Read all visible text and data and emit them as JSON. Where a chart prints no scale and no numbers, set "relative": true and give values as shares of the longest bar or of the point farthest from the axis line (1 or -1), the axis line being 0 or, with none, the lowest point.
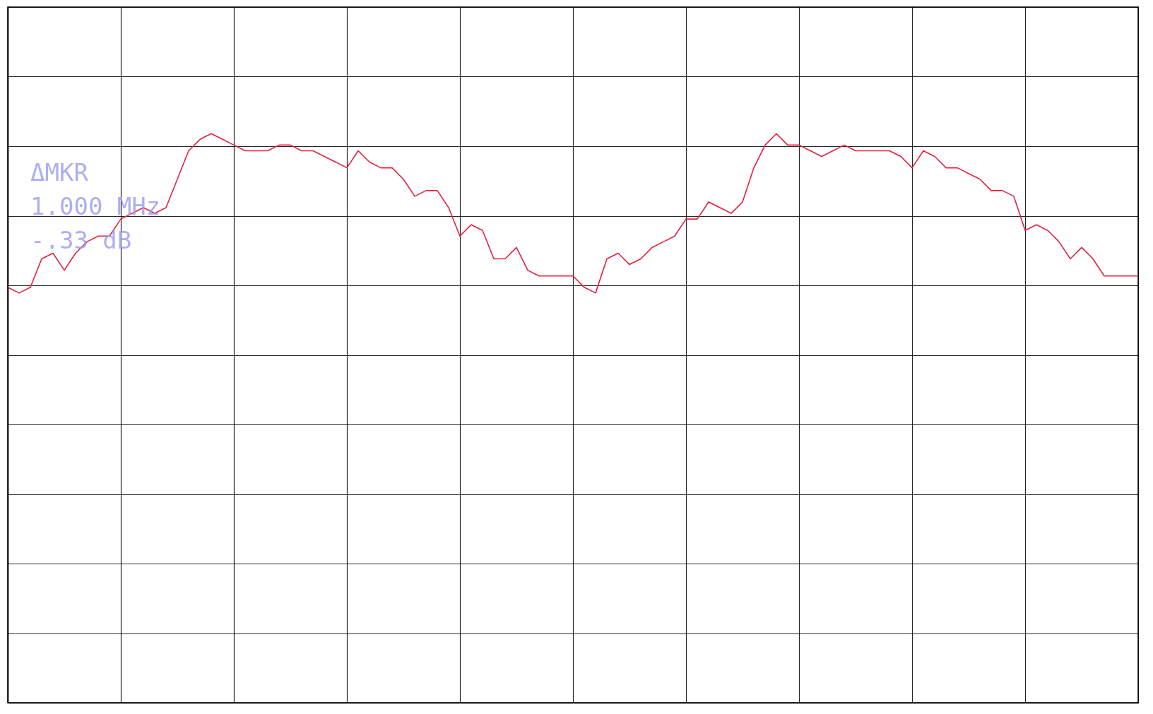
{
  "chart_data": {
    "type": "line",
    "relative": true,
    "grid": true,
    "categories": [
      null,
      null,
      null,
      null,
      null,
      null,
      null,
      null,
      null,
      null,
      null,
      null,
      null,
      null,
      null,
      null,
      null,
      null,
      null,
      null,
      null,
      null,
      null,
      null,
      null,
      null,
      null,
      null,
      null,
      null,
      null,
      null,
      null,
      null,
      null,
      null,
      null,
      null,
      null,
      null,
      null,
      null,
      null,
      null,
      null,
      null,
      null,
      null,
      null,
      null,
      null,
      null,
      null,
      null,
      null,
      null,
      null,
      null,
      null,
      null,
      null,
      null,
      null,
      null,
      null,
      null,
      null,
      null,
      null,
      null,
      null,
      null,
      null,
      null,
      null,
      null,
      null,
      null,
      null,
      null,
      null,
      null,
      null,
      null,
      null,
      null,
      null,
      null,
      null,
      null,
      null,
      null,
      null,
      null,
      null,
      null,
      null,
      null,
      null,
      null,
      null
    ],
    "annotations": [
      "ΔMKR",
      "1.000 MHz",
      "-.33 dB"
    ],
    "series": [
      {
        "color": "#e8203a",
        "marker": "none",
        "line_style": "solid",
        "values": [
          0.73,
          0.72,
          0.73,
          0.78,
          0.79,
          0.76,
          0.79,
          0.81,
          0.82,
          0.82,
          0.85,
          0.86,
          0.87,
          0.86,
          0.87,
          0.92,
          0.97,
          0.99,
          1,
          0.99,
          0.98,
          0.97,
          0.97,
          0.97,
          0.98,
          0.98,
          0.97,
          0.97,
          0.96,
          0.95,
          0.94,
          0.97,
          0.95,
          0.94,
          0.94,
          0.92,
          0.89,
          0.9,
          0.9,
          0.87,
          0.82,
          0.84,
          0.83,
          0.78,
          0.78,
          0.8,
          0.76,
          0.75,
          0.75,
          0.75,
          0.75,
          0.73,
          0.72,
          0.78,
          0.79,
          0.77,
          0.78,
          0.8,
          0.81,
          0.82,
          0.85,
          0.85,
          0.88,
          0.87,
          0.86,
          0.88,
          0.94,
          0.98,
          1,
          0.98,
          0.98,
          0.97,
          0.96,
          0.97,
          0.98,
          0.97,
          0.97,
          0.97,
          0.97,
          0.96,
          0.94,
          0.97,
          0.96,
          0.94,
          0.94,
          0.93,
          0.92,
          0.9,
          0.9,
          0.89,
          0.83,
          0.84,
          0.83,
          0.81,
          0.78,
          0.8,
          0.78,
          0.75,
          0.75,
          0.75,
          0.75
        ]
      }
    ]
  }
}
